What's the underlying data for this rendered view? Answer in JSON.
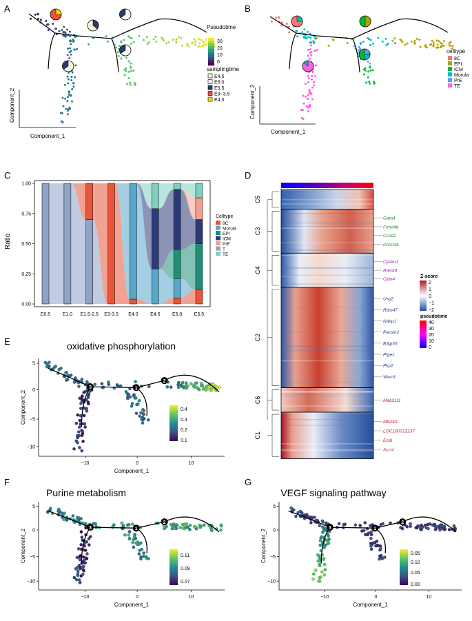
{
  "colors": {
    "viridis": [
      "#440154",
      "#3b528b",
      "#21918c",
      "#5ec962",
      "#fde725"
    ],
    "celltype": {
      "8C": "#f8766d",
      "EPI": "#b79f00",
      "ICM": "#00ba38",
      "Morula": "#00bfc4",
      "PrE": "#619cff",
      "TE": "#f564e3"
    },
    "stack": {
      "8C": "#e8553a",
      "Morula": "#5aa6c8",
      "EPI": "#1f8f76",
      "ICM": "#2d3a78",
      "PrE": "#f0a08e",
      "T": "#8fa3c6",
      "TE": "#7fcfc0"
    },
    "pseudo_cmap": [
      "#0000ff",
      "#7f00ff",
      "#ff00ff",
      "#ff0080",
      "#ff0000"
    ],
    "z_low": "#1f4fa1",
    "z_mid": "#ffffff",
    "z_high": "#b2182b"
  },
  "panels": {
    "A": {
      "letter": "A",
      "xlabel": "Component_1",
      "ylabel": "Component_2",
      "legend1_title": "Pseudotime",
      "legend1_ticks": [
        "30",
        "20",
        "10",
        "0"
      ],
      "legend2_title": "samplingtime",
      "legend2_items": [
        "E4.5",
        "E5.0",
        "E5.5",
        "E3~3.5",
        "E4.0"
      ],
      "legend2_colors": [
        "#f5f5dc",
        "#ffffff",
        "#2b3a67",
        "#e8553a",
        "#ffd700"
      ]
    },
    "B": {
      "letter": "B",
      "xlabel": "Component_1",
      "ylabel": "Component_2",
      "legend_title": "celltype",
      "legend_items": [
        "8C",
        "EPI",
        "ICM",
        "Morula",
        "PrE",
        "TE"
      ]
    },
    "C": {
      "letter": "C",
      "ylabel": "Ratio",
      "legend_title": "Celltype",
      "legend_items": [
        "8C",
        "Morula",
        "EPI",
        "ICM",
        "PrE",
        "T",
        "TE"
      ]
    },
    "D": {
      "letter": "D",
      "clusters": [
        "C5",
        "C3",
        "C4",
        "C2",
        "C6",
        "C1"
      ],
      "cluster_fracs": [
        0.08,
        0.18,
        0.14,
        0.41,
        0.1,
        0.19
      ],
      "genes": [
        {
          "name": "Gata4",
          "cluster": "C3",
          "color": "#2e8b2e"
        },
        {
          "name": "Frmd4b",
          "cluster": "C3",
          "color": "#2e8b2e"
        },
        {
          "name": "Ccnd2",
          "cluster": "C3",
          "color": "#2e8b2e"
        },
        {
          "name": "Dnmt3b",
          "cluster": "C3",
          "color": "#2e8b2e"
        },
        {
          "name": "Cystm1",
          "cluster": "C4",
          "color": "#a0209b"
        },
        {
          "name": "Rassf4",
          "cluster": "C4",
          "color": "#a0209b"
        },
        {
          "name": "Cldn4",
          "cluster": "C4",
          "color": "#a0209b"
        },
        {
          "name": "Usp2",
          "cluster": "C2",
          "color": "#2b3a8f"
        },
        {
          "name": "Rbm47",
          "cluster": "C2",
          "color": "#2b3a8f"
        },
        {
          "name": "Nabp1",
          "cluster": "C2",
          "color": "#2b3a8f"
        },
        {
          "name": "Pacsin2",
          "cluster": "C2",
          "color": "#2b3a8f"
        },
        {
          "name": "B3gnt5",
          "cluster": "C2",
          "color": "#2b3a8f"
        },
        {
          "name": "Ptges",
          "cluster": "C2",
          "color": "#2b3a8f"
        },
        {
          "name": "Pkp2",
          "cluster": "C2",
          "color": "#2b3a8f"
        },
        {
          "name": "Wwc3",
          "cluster": "C2",
          "color": "#2b3a8f"
        },
        {
          "name": "Mab21l3",
          "cluster": "C6",
          "color": "#c8202a"
        },
        {
          "name": "Mbd3l1",
          "cluster": "C1",
          "color": "#c8202a"
        },
        {
          "name": "LOC100713137",
          "cluster": "C1",
          "color": "#c8202a"
        },
        {
          "name": "Emb",
          "cluster": "C1",
          "color": "#c8202a"
        },
        {
          "name": "Accsl",
          "cluster": "C1",
          "color": "#c8202a"
        }
      ],
      "zscore_title": "Z-score",
      "zscore_ticks": [
        "2",
        "1",
        "0",
        "−1",
        "−2"
      ],
      "pseudotime_title": "pseudotime",
      "pseudotime_ticks": [
        "40",
        "30",
        "20",
        "10",
        "0"
      ]
    },
    "E": {
      "letter": "E",
      "title": "oxidative phosphorylation",
      "legend_ticks": [
        "0.4",
        "0.3",
        "0.2",
        "0.1"
      ]
    },
    "F": {
      "letter": "F",
      "title": "Purine metabolism",
      "legend_ticks": [
        "0.11",
        "0.09",
        "0.07"
      ]
    },
    "G": {
      "letter": "G",
      "title": "VEGF signaling pathway",
      "legend_ticks": [
        "0.05",
        "0.10",
        "0.05",
        "0.00"
      ]
    }
  },
  "trajectory_axes": {
    "xlabel": "Component_1",
    "ylabel": "Component_2",
    "xticks": [
      "−10",
      "0",
      "10"
    ],
    "yticks": [
      "5",
      "0",
      "−5",
      "−10"
    ],
    "nodes": [
      "3",
      "1",
      "2"
    ]
  },
  "chart_data": [
    {
      "type": "area",
      "panel": "C",
      "ylabel": "Ratio",
      "ylim": [
        0,
        1
      ],
      "yticks": [
        "0.00",
        "0.25",
        "0.50",
        "0.75",
        "1.00"
      ],
      "categories": [
        "E0.5",
        "E1.0",
        "E1.5-2.5",
        "E3-3.5",
        "E4.0",
        "E4.5",
        "E5.0",
        "E5.5"
      ],
      "series": [
        {
          "name": "T",
          "values": [
            1,
            1,
            0.7,
            0,
            0,
            0,
            0,
            0
          ]
        },
        {
          "name": "8C",
          "values": [
            0,
            0,
            0.3,
            1,
            0.04,
            0,
            0.05,
            0.12
          ]
        },
        {
          "name": "Morula",
          "values": [
            0,
            0,
            0,
            0,
            0.96,
            0.29,
            0.16,
            0
          ]
        },
        {
          "name": "EPI",
          "values": [
            0,
            0,
            0,
            0,
            0,
            0,
            0.24,
            0.38
          ]
        },
        {
          "name": "ICM",
          "values": [
            0,
            0,
            0,
            0,
            0,
            0.5,
            0.5,
            0.2
          ]
        },
        {
          "name": "PrE",
          "values": [
            0,
            0,
            0,
            0,
            0,
            0,
            0,
            0.18
          ]
        },
        {
          "name": "TE",
          "values": [
            0,
            0,
            0,
            0,
            0,
            0.21,
            0.05,
            0.12
          ]
        }
      ]
    }
  ]
}
